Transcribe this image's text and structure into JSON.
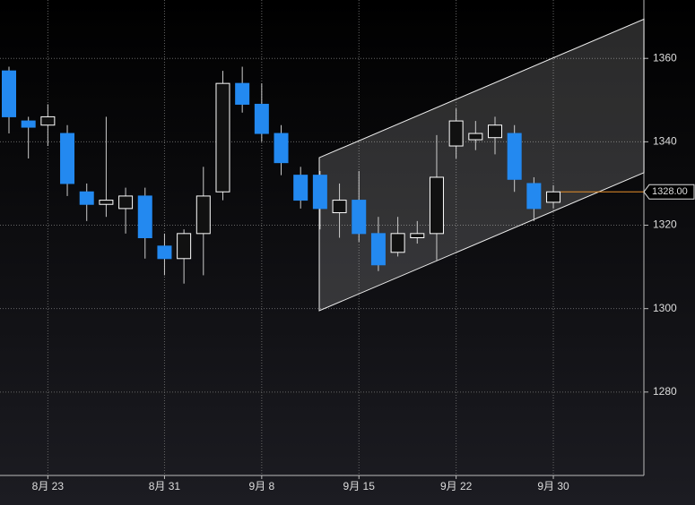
{
  "chart_data": {
    "type": "candlestick",
    "categories": [
      null,
      null,
      "8月 23",
      null,
      null,
      null,
      null,
      null,
      "8月 31",
      null,
      null,
      null,
      null,
      "9月 8",
      null,
      null,
      null,
      null,
      "9月 15",
      null,
      null,
      null,
      null,
      "9月 22",
      null,
      null,
      null,
      null,
      "9月 30"
    ],
    "open": [
      1357,
      1345,
      1344,
      1342,
      1328,
      1325,
      1324,
      1327,
      1315,
      1312,
      1318,
      1328,
      1354,
      1349,
      1342,
      1332,
      1332,
      1323,
      1326,
      1318,
      1313.5,
      1317,
      1318,
      1339,
      1340.5,
      1341,
      1342,
      1330,
      1325.5
    ],
    "high": [
      1358,
      1346,
      1349,
      1344,
      1330,
      1346,
      1329,
      1329,
      1318,
      1319,
      1334,
      1357,
      1358,
      1354,
      1344,
      1334,
      1333,
      1330,
      1333,
      1322,
      1322,
      1321,
      1341.6,
      1348,
      1345,
      1346,
      1344,
      1331.5,
      1329.6
    ],
    "low": [
      1342,
      1336,
      1339,
      1327,
      1321,
      1322,
      1318,
      1312,
      1308,
      1306,
      1308,
      1326,
      1347,
      1340,
      1332,
      1324,
      1319,
      1317,
      1316,
      1309,
      1312.5,
      1315.6,
      1311.6,
      1336,
      1338,
      1337,
      1328,
      1321,
      1324
    ],
    "close": [
      1346,
      1343.5,
      1346,
      1330,
      1325,
      1326,
      1327,
      1317,
      1312,
      1318,
      1327,
      1354,
      1349,
      1342,
      1335,
      1326,
      1324,
      1326,
      1318,
      1310.5,
      1318,
      1318,
      1331.5,
      1345,
      1342,
      1344,
      1331,
      1324,
      1328
    ],
    "up_color": "#ffffff",
    "down_color": "#2389f0",
    "channel": {
      "x": [
        15.96,
        32.66
      ],
      "upper": [
        1336.2,
        1369.4
      ],
      "lower": [
        1299.5,
        1332.6
      ]
    },
    "last_price": {
      "value": 1328,
      "label": "1328.00"
    },
    "ylim": [
      1260,
      1374
    ],
    "yticks": [
      1280,
      1300,
      1320,
      1340,
      1360
    ],
    "grid": true
  }
}
